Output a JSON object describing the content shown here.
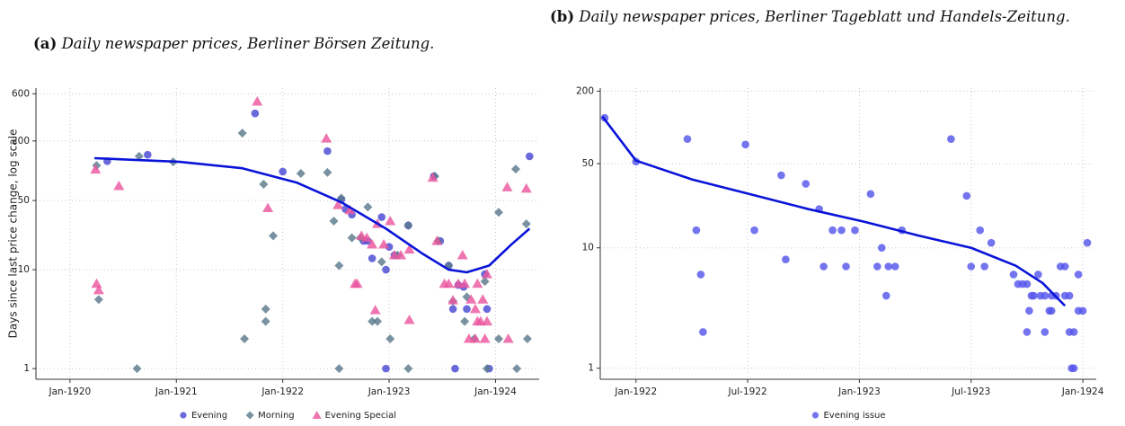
{
  "chart_data": [
    {
      "type": "scatter",
      "label": "(a)",
      "title": "Daily newspaper prices, Berliner Börsen Zeitung.",
      "y_label": "Days since last price change, log scale",
      "log_scale": "y",
      "grid": true,
      "legend": "bottom",
      "xlim": [
        1919.68,
        1924.41
      ],
      "ylim": [
        0.78,
        685
      ],
      "xticks": [
        {
          "value": 1920,
          "label": "Jan-1920"
        },
        {
          "value": 1921,
          "label": "Jan-1921"
        },
        {
          "value": 1922,
          "label": "Jan-1922"
        },
        {
          "value": 1923,
          "label": "Jan-1923"
        },
        {
          "value": 1924,
          "label": "Jan-1924"
        }
      ],
      "yticks": [
        1,
        10,
        50,
        200,
        600
      ],
      "series": [
        {
          "name": "Evening",
          "marker": "circle",
          "color": "#4848d4",
          "x": [
            1920.35,
            1920.73,
            1921.74,
            1922.0,
            1922.42,
            1922.55,
            1922.59,
            1922.65,
            1922.76,
            1922.8,
            1922.84,
            1922.93,
            1922.97,
            1922.97,
            1923.0,
            1923.05,
            1923.18,
            1923.42,
            1923.48,
            1923.56,
            1923.6,
            1923.62,
            1923.65,
            1923.7,
            1923.73,
            1923.9,
            1923.92,
            1923.94,
            1924.32
          ],
          "values": [
            125,
            145,
            380,
            98,
            158,
            51,
            41,
            36,
            19.5,
            19.5,
            13,
            34,
            10,
            1,
            17,
            14,
            28,
            88,
            19.5,
            11,
            4,
            1,
            7,
            6.7,
            4,
            9,
            4,
            1,
            140
          ]
        },
        {
          "name": "Morning",
          "marker": "diamond",
          "color": "#5a7a8c",
          "x": [
            1920.25,
            1920.27,
            1920.63,
            1920.65,
            1920.97,
            1921.62,
            1921.64,
            1921.82,
            1921.84,
            1921.84,
            1921.91,
            1922.17,
            1922.42,
            1922.48,
            1922.53,
            1922.53,
            1922.55,
            1922.65,
            1922.73,
            1922.8,
            1922.84,
            1922.89,
            1922.93,
            1923.01,
            1923.08,
            1923.18,
            1923.18,
            1923.43,
            1923.46,
            1923.56,
            1923.6,
            1923.71,
            1923.73,
            1923.8,
            1923.9,
            1923.92,
            1924.03,
            1924.03,
            1924.2,
            1924.19,
            1924.29,
            1924.3
          ],
          "values": [
            113,
            5,
            1,
            140,
            123,
            240,
            2,
            73,
            3,
            4,
            22,
            94,
            96,
            31,
            11,
            1,
            53,
            21,
            21,
            43,
            3,
            3,
            12,
            2,
            14,
            28,
            1,
            88,
            19.5,
            11,
            4.8,
            3,
            5.3,
            2,
            7.6,
            1,
            2,
            38,
            1,
            104,
            29,
            2
          ]
        },
        {
          "name": "Evening Special",
          "marker": "triangle",
          "color": "#ec579f",
          "x": [
            1920.24,
            1920.25,
            1920.27,
            1920.46,
            1921.76,
            1921.86,
            1922.41,
            1922.52,
            1922.63,
            1922.68,
            1922.7,
            1922.74,
            1922.79,
            1922.84,
            1922.87,
            1922.89,
            1922.95,
            1923.01,
            1923.05,
            1923.11,
            1923.19,
            1923.19,
            1923.41,
            1923.45,
            1923.52,
            1923.56,
            1923.6,
            1923.69,
            1923.65,
            1923.71,
            1923.77,
            1923.81,
            1923.86,
            1923.9,
            1923.75,
            1923.81,
            1923.88,
            1923.83,
            1923.92,
            1923.83,
            1923.92,
            1924.11,
            1924.12,
            1924.29
          ],
          "values": [
            103,
            7.2,
            6.2,
            70,
            500,
            42,
            212,
            45,
            40,
            7.2,
            7.2,
            22,
            21,
            18,
            3.9,
            29,
            18,
            31,
            14,
            14,
            16,
            3.1,
            85,
            19.5,
            7.2,
            7.2,
            4.9,
            14,
            7.2,
            7.2,
            5,
            4,
            3,
            2,
            2,
            2,
            5,
            3,
            3,
            7.2,
            9,
            68,
            2,
            66
          ]
        }
      ],
      "fit": {
        "color": "#0a14d8",
        "x": [
          1920.23,
          1921.03,
          1921.62,
          1922.13,
          1922.55,
          1922.97,
          1923.31,
          1923.56,
          1923.73,
          1923.94,
          1924.15,
          1924.32
        ],
        "values": [
          134,
          123,
          106,
          76,
          48,
          26,
          14.6,
          10,
          9.4,
          11,
          18,
          26
        ]
      }
    },
    {
      "type": "scatter",
      "label": "(b)",
      "title": "Daily newspaper prices, Berliner Tageblatt und Handels-Zeitung.",
      "log_scale": "y",
      "grid": true,
      "legend": "bottom",
      "xlim": [
        1921.84,
        1924.06
      ],
      "ylim": [
        0.81,
        212
      ],
      "xticks": [
        {
          "value": 1922,
          "label": "Jan-1922"
        },
        {
          "value": 1922.5,
          "label": "Jul-1922"
        },
        {
          "value": 1923,
          "label": "Jan-1923"
        },
        {
          "value": 1923.5,
          "label": "Jul-1923"
        },
        {
          "value": 1924,
          "label": "Jan-1924"
        }
      ],
      "yticks": [
        1,
        10,
        50,
        200
      ],
      "series": [
        {
          "name": "Evening issue",
          "marker": "circle",
          "color": "#5656ec",
          "x": [
            1921.86,
            1922.0,
            1922.23,
            1922.27,
            1922.29,
            1922.3,
            1922.49,
            1922.53,
            1922.65,
            1922.67,
            1922.76,
            1922.82,
            1922.84,
            1922.88,
            1922.92,
            1922.94,
            1922.98,
            1923.05,
            1923.08,
            1923.1,
            1923.12,
            1923.13,
            1923.16,
            1923.19,
            1923.41,
            1923.48,
            1923.5,
            1923.54,
            1923.56,
            1923.59,
            1923.69,
            1923.71,
            1923.73,
            1923.75,
            1923.76,
            1923.75,
            1923.77,
            1923.78,
            1923.8,
            1923.81,
            1923.83,
            1923.83,
            1923.85,
            1923.86,
            1923.86,
            1923.88,
            1923.9,
            1923.92,
            1923.92,
            1923.94,
            1923.94,
            1923.95,
            1923.96,
            1923.96,
            1923.98,
            1923.98,
            1924.0,
            1924.02
          ],
          "values": [
            120,
            52,
            80,
            14,
            6,
            2,
            72,
            14,
            40,
            8,
            34,
            21,
            7,
            14,
            14,
            7,
            14,
            28,
            7,
            10,
            4,
            7,
            7,
            14,
            80,
            27,
            7,
            14,
            7,
            11,
            6,
            5,
            5,
            5,
            3,
            2,
            4,
            4,
            6,
            4,
            2,
            4,
            3,
            4,
            3,
            4,
            7,
            7,
            4,
            4,
            2,
            1,
            2,
            1,
            6,
            3,
            3,
            11
          ]
        }
      ],
      "fit": {
        "color": "#0a14d8",
        "x": [
          1921.85,
          1922.0,
          1922.25,
          1922.49,
          1922.77,
          1923.02,
          1923.26,
          1923.5,
          1923.7,
          1923.82,
          1923.92
        ],
        "values": [
          123,
          53,
          37,
          28.5,
          21,
          16.5,
          12.7,
          10,
          7.1,
          5.1,
          3.3
        ]
      }
    }
  ]
}
